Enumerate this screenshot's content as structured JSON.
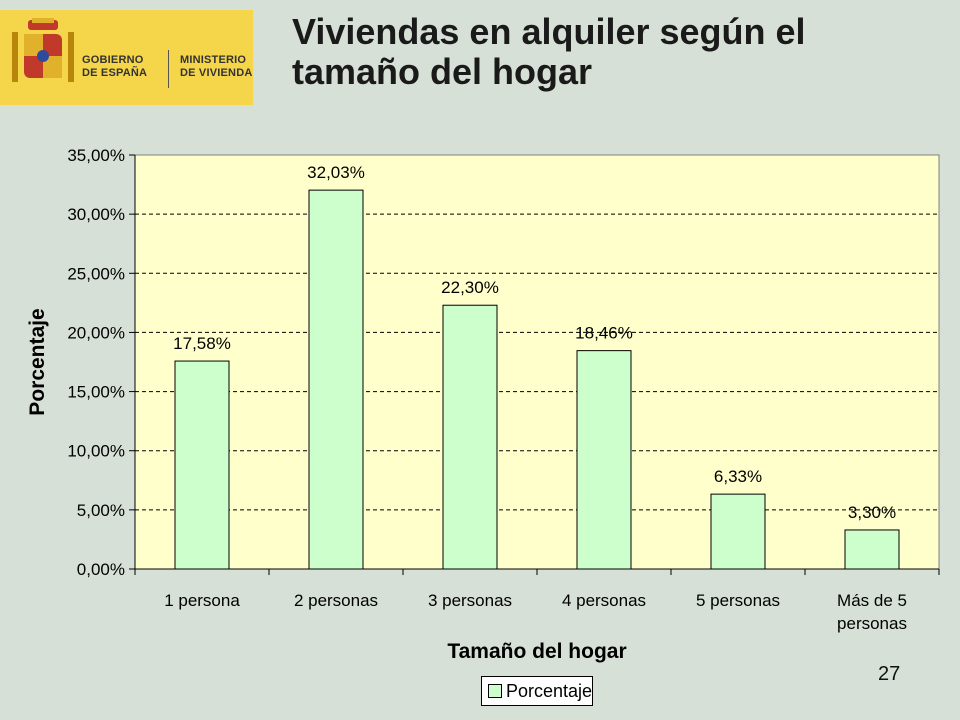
{
  "logo": {
    "line1": [
      "GOBIERNO",
      "DE ESPAÑA"
    ],
    "line2": [
      "MINISTERIO",
      "DE VIVIENDA"
    ]
  },
  "slide_title": [
    "Viviendas en alquiler según  el",
    "tamaño del hogar"
  ],
  "page_number": "27",
  "colors": {
    "background": "#d7e0d6",
    "plot_area": "#ffffcc",
    "bar_fill": "#ccffcc",
    "logo": "#f5d54a"
  },
  "chart_data": {
    "type": "bar",
    "categories": [
      "1 persona",
      "2 personas",
      "3 personas",
      "4 personas",
      "5 personas",
      "Más de 5 personas"
    ],
    "category_lines": [
      [
        "1 persona"
      ],
      [
        "2 personas"
      ],
      [
        "3 personas"
      ],
      [
        "4 personas"
      ],
      [
        "5 personas"
      ],
      [
        "Más de 5",
        "personas"
      ]
    ],
    "series": [
      {
        "name": "Porcentaje",
        "values": [
          17.58,
          32.03,
          22.3,
          18.46,
          6.33,
          3.3
        ]
      }
    ],
    "data_labels": [
      "17,58%",
      "32,03%",
      "22,30%",
      "18,46%",
      "6,33%",
      "3,30%"
    ],
    "ylim": [
      0,
      35
    ],
    "yticks": [
      0,
      5,
      10,
      15,
      20,
      25,
      30,
      35
    ],
    "ytick_labels": [
      "0,00%",
      "5,00%",
      "10,00%",
      "15,00%",
      "20,00%",
      "25,00%",
      "30,00%",
      "35,00%"
    ],
    "xlabel": "Tamaño del hogar",
    "ylabel": "Porcentaje",
    "grid": "horizontal dashed",
    "legend": {
      "placement": "bottom",
      "entries": [
        "Porcentaje"
      ]
    }
  }
}
